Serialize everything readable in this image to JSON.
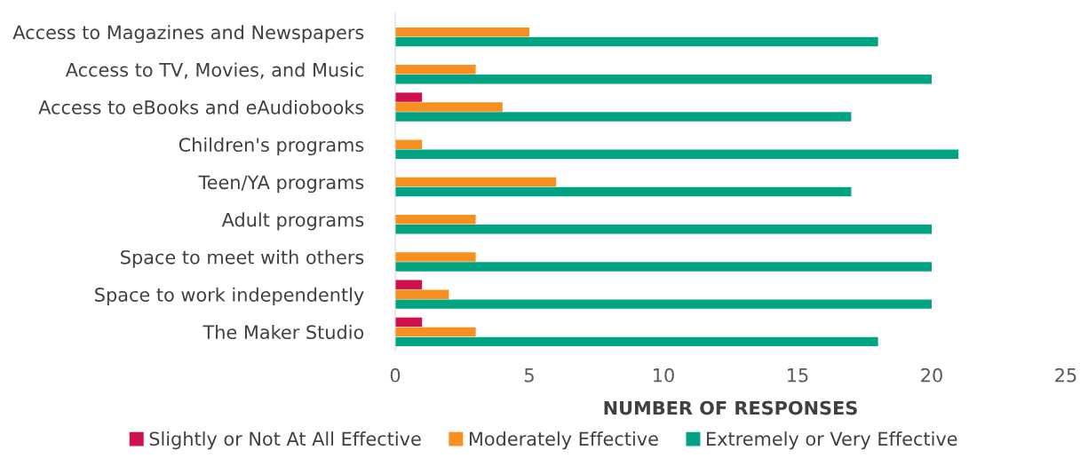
{
  "chart_data": {
    "type": "bar",
    "orientation": "horizontal",
    "xlabel": "NUMBER OF RESPONSES",
    "categories": [
      "Access to Magazines and Newspapers",
      "Access to TV, Movies, and Music",
      "Access to eBooks and eAudiobooks",
      "Children's programs",
      "Teen/YA programs",
      "Adult programs",
      "Space to meet with others",
      "Space to work independently",
      "The Maker Studio"
    ],
    "series": [
      {
        "name": "Slightly or Not At All Effective",
        "color": "#d0104c",
        "values": [
          0,
          0,
          1,
          0,
          0,
          0,
          0,
          1,
          1
        ]
      },
      {
        "name": "Moderately Effective",
        "color": "#f7901e",
        "values": [
          5,
          3,
          4,
          1,
          6,
          3,
          3,
          2,
          3
        ]
      },
      {
        "name": "Extremely or Very Effective",
        "color": "#00a483",
        "values": [
          18,
          20,
          17,
          21,
          17,
          20,
          20,
          20,
          18
        ]
      }
    ],
    "xlim": [
      0,
      25
    ],
    "xticks": [
      0,
      5,
      10,
      15,
      20,
      25
    ],
    "grid": false,
    "legend": "bottom"
  }
}
